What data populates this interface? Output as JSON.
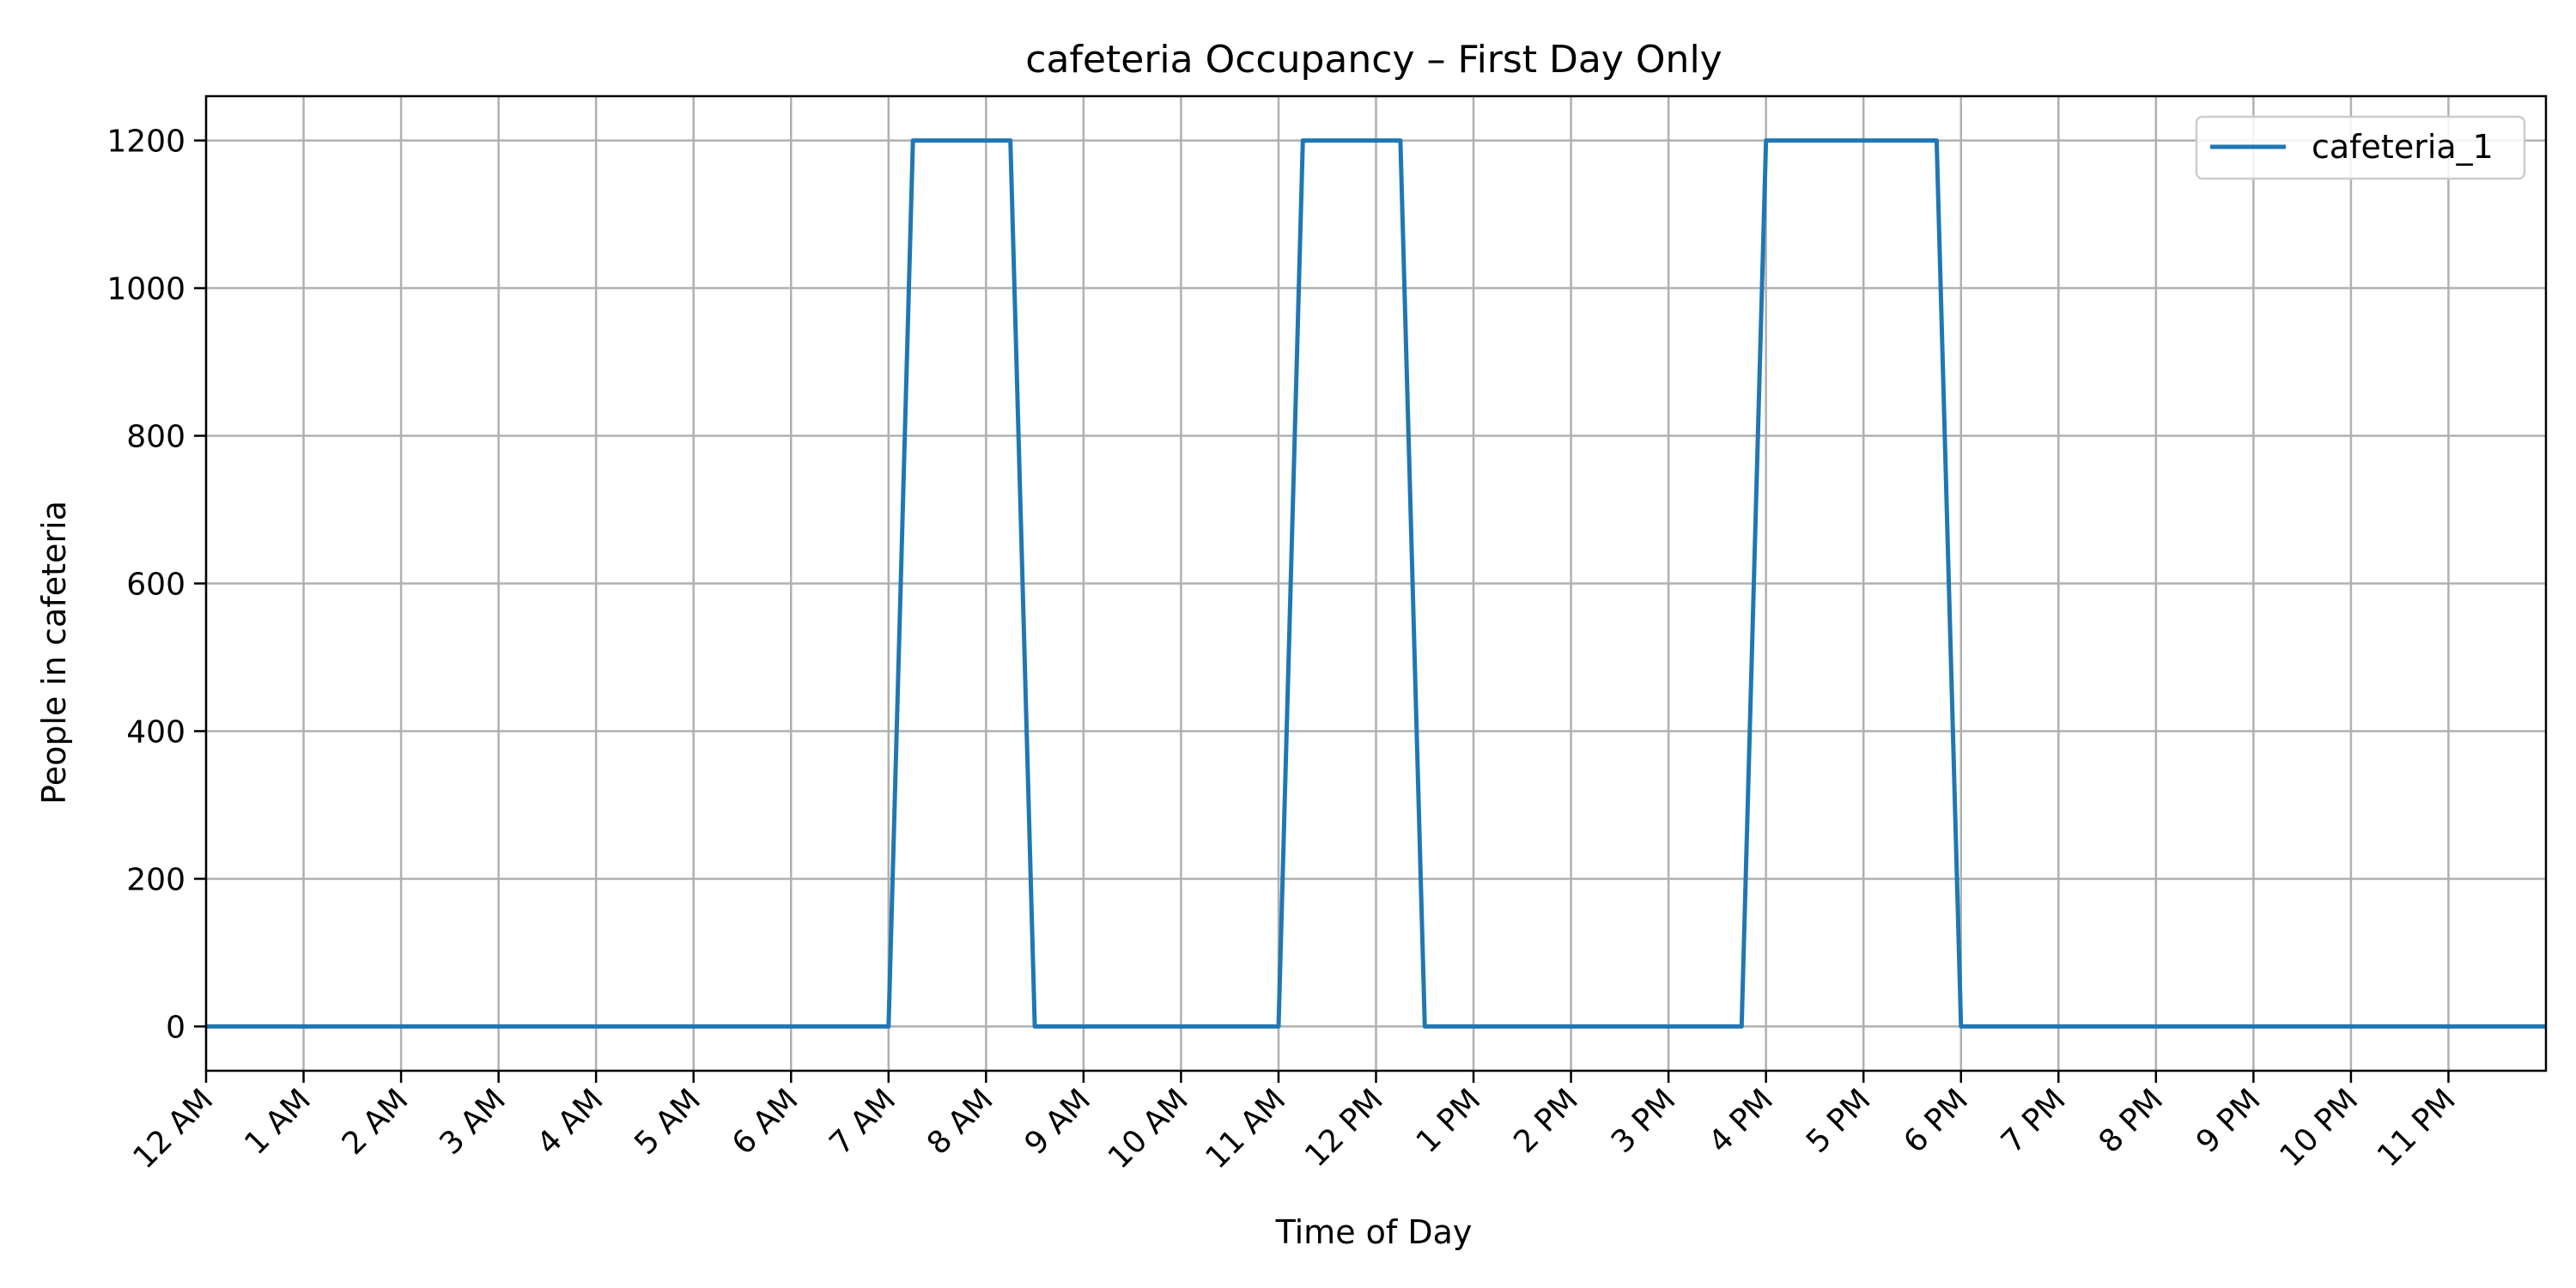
{
  "chart_data": {
    "type": "line",
    "title": "cafeteria Occupancy – First Day Only",
    "xlabel": "Time of Day",
    "ylabel": "People in cafeteria",
    "x_unit": "hour of day",
    "xlim": [
      0,
      24
    ],
    "ylim": [
      -60,
      1260
    ],
    "x_ticks": [
      {
        "value": 0,
        "label": "12 AM"
      },
      {
        "value": 1,
        "label": "1 AM"
      },
      {
        "value": 2,
        "label": "2 AM"
      },
      {
        "value": 3,
        "label": "3 AM"
      },
      {
        "value": 4,
        "label": "4 AM"
      },
      {
        "value": 5,
        "label": "5 AM"
      },
      {
        "value": 6,
        "label": "6 AM"
      },
      {
        "value": 7,
        "label": "7 AM"
      },
      {
        "value": 8,
        "label": "8 AM"
      },
      {
        "value": 9,
        "label": "9 AM"
      },
      {
        "value": 10,
        "label": "10 AM"
      },
      {
        "value": 11,
        "label": "11 AM"
      },
      {
        "value": 12,
        "label": "12 PM"
      },
      {
        "value": 13,
        "label": "1 PM"
      },
      {
        "value": 14,
        "label": "2 PM"
      },
      {
        "value": 15,
        "label": "3 PM"
      },
      {
        "value": 16,
        "label": "4 PM"
      },
      {
        "value": 17,
        "label": "5 PM"
      },
      {
        "value": 18,
        "label": "6 PM"
      },
      {
        "value": 19,
        "label": "7 PM"
      },
      {
        "value": 20,
        "label": "8 PM"
      },
      {
        "value": 21,
        "label": "9 PM"
      },
      {
        "value": 22,
        "label": "10 PM"
      },
      {
        "value": 23,
        "label": "11 PM"
      }
    ],
    "y_ticks": [
      0,
      200,
      400,
      600,
      800,
      1000,
      1200
    ],
    "grid": true,
    "legend_position": "top-right",
    "series": [
      {
        "name": "cafeteria_1",
        "color": "#1f77b4",
        "points": [
          [
            0,
            0
          ],
          [
            7,
            0
          ],
          [
            7.25,
            1200
          ],
          [
            8.25,
            1200
          ],
          [
            8.5,
            0
          ],
          [
            11,
            0
          ],
          [
            11.25,
            1200
          ],
          [
            12.25,
            1200
          ],
          [
            12.5,
            0
          ],
          [
            15.75,
            0
          ],
          [
            16,
            1200
          ],
          [
            17.75,
            1200
          ],
          [
            18,
            0
          ],
          [
            24,
            0
          ]
        ]
      }
    ]
  }
}
